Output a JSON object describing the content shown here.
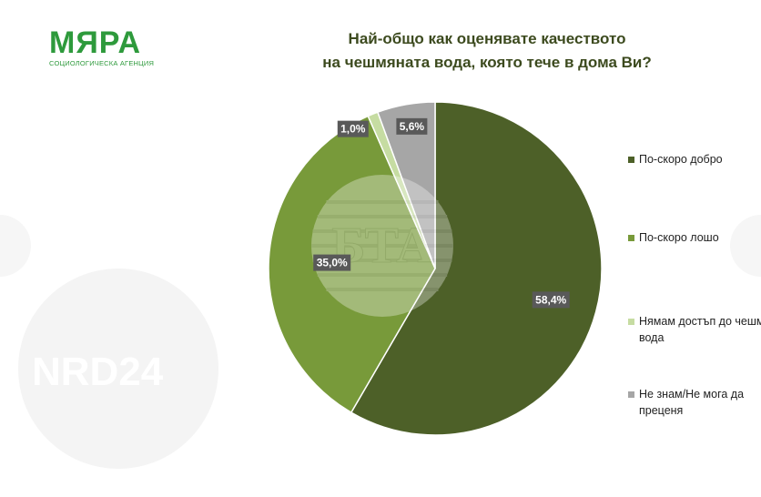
{
  "logo": {
    "main": "МЯРА",
    "sub": "СОЦИОЛОГИЧЕСКА АГЕНЦИЯ"
  },
  "title_lines": [
    "Най-общо как оценявате качеството",
    "на чешмяната вода, която тече в дома Ви?"
  ],
  "watermarks": {
    "center": "БТА",
    "left": "NRD24"
  },
  "chart_data": {
    "type": "pie",
    "title": "Най-общо как оценявате качеството на чешмяната вода, която тече в дома Ви?",
    "slices": [
      {
        "label": "По-скоро добро",
        "value": 58.4,
        "display": "58,4%",
        "color": "#4d6028"
      },
      {
        "label": "По-скоро лошо",
        "value": 35.0,
        "display": "35,0%",
        "color": "#789a3a"
      },
      {
        "label": "Нямам достъп до чешмяна вода",
        "value": 1.0,
        "display": "1,0%",
        "color": "#c6dca2"
      },
      {
        "label": "Не знам/Не мога да преценя",
        "value": 5.6,
        "display": "5,6%",
        "color": "#a6a6a6"
      }
    ],
    "legend_position": "right",
    "legend": [
      {
        "line1": "По-скоро добро",
        "line2": ""
      },
      {
        "line1": "По-скоро лошо",
        "line2": ""
      },
      {
        "line1": "Нямам достъп до чешмяна",
        "line2": "вода"
      },
      {
        "line1": "Не знам/Не мога да",
        "line2": "преценя"
      }
    ]
  }
}
